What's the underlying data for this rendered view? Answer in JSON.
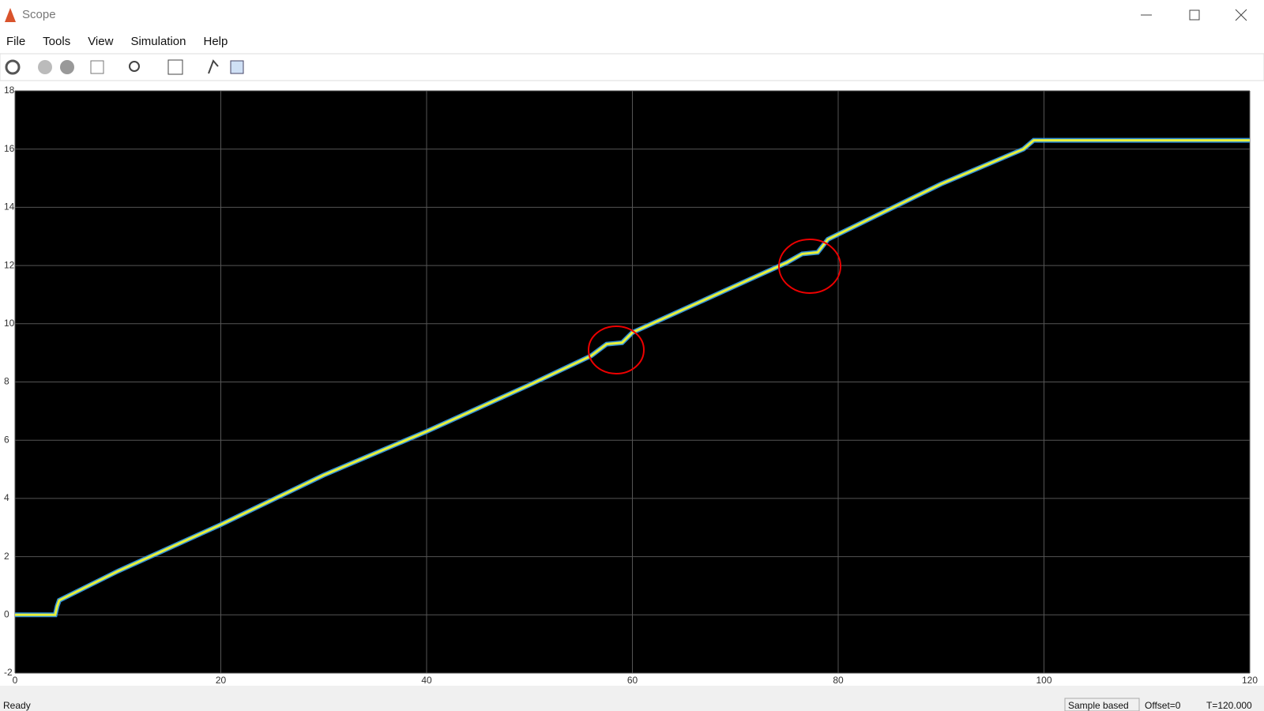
{
  "window": {
    "title": "Scope"
  },
  "menu": [
    "File",
    "Tools",
    "View",
    "Simulation",
    "Help"
  ],
  "chart_data": {
    "type": "line",
    "x": [
      0,
      3.9,
      4.1,
      4.3,
      10,
      20,
      30,
      40,
      50,
      56,
      57.5,
      59,
      60,
      70,
      75,
      76.5,
      78,
      79,
      90,
      98,
      99,
      120
    ],
    "values": [
      0,
      0,
      0.3,
      0.5,
      1.5,
      3.1,
      4.8,
      6.3,
      7.9,
      8.9,
      9.3,
      9.35,
      9.7,
      11.3,
      12.1,
      12.4,
      12.45,
      12.9,
      14.8,
      16.0,
      16.3,
      16.3
    ],
    "color": "#e8f03a",
    "xlim": [
      0,
      120
    ],
    "xticks": [
      0,
      20,
      40,
      60,
      80,
      100,
      120
    ],
    "ylim": [
      -2,
      18
    ],
    "yticks": [
      -2,
      0,
      2,
      4,
      6,
      8,
      10,
      12,
      14,
      16,
      18
    ],
    "grid": true
  },
  "status": {
    "state": "Ready",
    "mode": "Sample based",
    "offset": "Offset=0",
    "time": "T=120.000"
  }
}
